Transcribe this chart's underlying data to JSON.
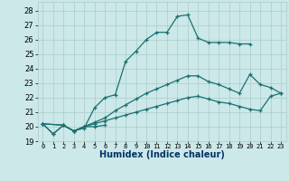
{
  "title": "",
  "xlabel": "Humidex (Indice chaleur)",
  "background_color": "#cce8e8",
  "line_color": "#1a7070",
  "grid_color": "#aacccc",
  "xlim": [
    -0.5,
    23.5
  ],
  "ylim": [
    19,
    28.6
  ],
  "yticks": [
    19,
    20,
    21,
    22,
    23,
    24,
    25,
    26,
    27,
    28
  ],
  "xticks": [
    0,
    1,
    2,
    3,
    4,
    5,
    6,
    7,
    8,
    9,
    10,
    11,
    12,
    13,
    14,
    15,
    16,
    17,
    18,
    19,
    20,
    21,
    22,
    23
  ],
  "series1_x": [
    0,
    1,
    2,
    3,
    4,
    5,
    6,
    7,
    8,
    9,
    10,
    11,
    12,
    13,
    14,
    15,
    16,
    17,
    18,
    19,
    20
  ],
  "series1_y": [
    20.2,
    19.5,
    20.1,
    19.7,
    19.9,
    21.3,
    22.0,
    22.2,
    24.5,
    25.2,
    26.0,
    26.5,
    26.5,
    27.6,
    27.7,
    26.1,
    25.8,
    25.8,
    25.8,
    25.7,
    25.7
  ],
  "series2_x": [
    0,
    1,
    2,
    3,
    4,
    5,
    6
  ],
  "series2_y": [
    20.2,
    19.5,
    20.1,
    19.7,
    20.0,
    20.0,
    20.1
  ],
  "series3_x": [
    0,
    2,
    3,
    4,
    5,
    6,
    7,
    8,
    9,
    10,
    11,
    12,
    13,
    14,
    15,
    16,
    17,
    18,
    19,
    20,
    21,
    22,
    23
  ],
  "series3_y": [
    20.2,
    20.1,
    19.7,
    20.0,
    20.3,
    20.6,
    21.1,
    21.5,
    21.9,
    22.3,
    22.6,
    22.9,
    23.2,
    23.5,
    23.5,
    23.1,
    22.9,
    22.6,
    22.3,
    23.6,
    22.9,
    22.7,
    22.3
  ],
  "series4_x": [
    0,
    2,
    3,
    4,
    5,
    6,
    7,
    8,
    9,
    10,
    11,
    12,
    13,
    14,
    15,
    16,
    17,
    18,
    19,
    20,
    21,
    22,
    23
  ],
  "series4_y": [
    20.2,
    20.1,
    19.7,
    20.0,
    20.2,
    20.4,
    20.6,
    20.8,
    21.0,
    21.2,
    21.4,
    21.6,
    21.8,
    22.0,
    22.1,
    21.9,
    21.7,
    21.6,
    21.4,
    21.2,
    21.1,
    22.1,
    22.3
  ]
}
